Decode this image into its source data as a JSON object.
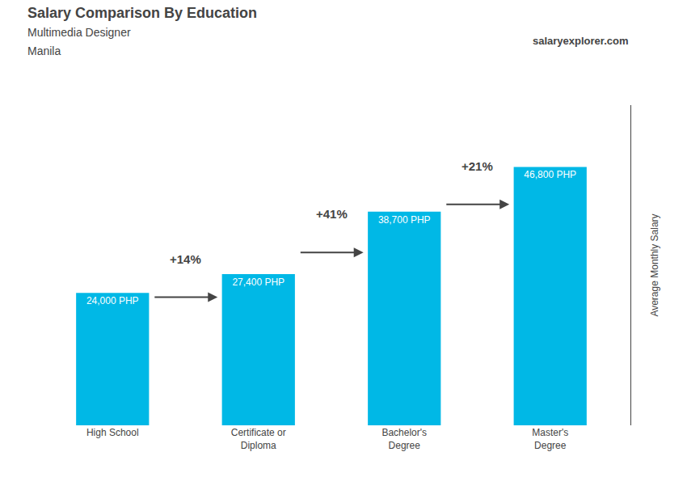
{
  "chart_data": {
    "type": "bar",
    "title": "Salary Comparison By Education",
    "subtitle": [
      "Multimedia Designer",
      "Manila"
    ],
    "source": "salaryexplorer.com",
    "ylabel": "Average Monthly Salary",
    "categories": [
      "High School",
      "Certificate or\nDiploma",
      "Bachelor's\nDegree",
      "Master's\nDegree"
    ],
    "values": [
      24000,
      27400,
      38700,
      46800
    ],
    "value_labels": [
      "24,000 PHP",
      "27,400 PHP",
      "38,700 PHP",
      "46,800 PHP"
    ],
    "data_labels": true,
    "annotations": [
      "+14%",
      "+41%",
      "+21%"
    ],
    "color": "#00b8e6",
    "ylim": [
      0,
      58000
    ],
    "tick_labels": "x",
    "grid": false
  }
}
